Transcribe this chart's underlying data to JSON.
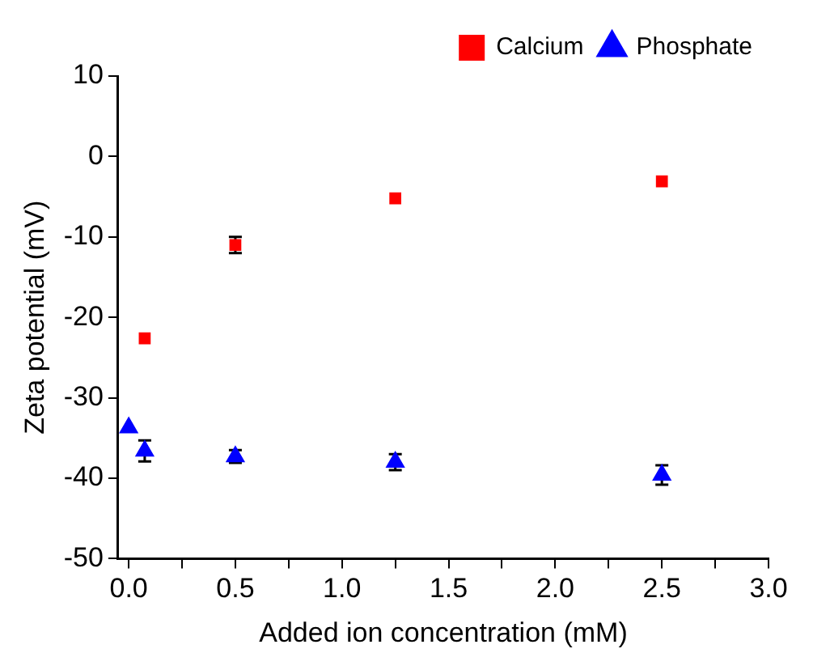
{
  "chart_data": {
    "type": "scatter",
    "xlabel": "Added ion concentration (mM)",
    "ylabel": "Zeta potential (mV)",
    "xlim": [
      -0.05,
      3.0
    ],
    "ylim": [
      -50,
      10
    ],
    "xticks": [
      {
        "value": 0,
        "label": "0.0"
      },
      {
        "value": 0.25,
        "label": null
      },
      {
        "value": 0.5,
        "label": "0.5"
      },
      {
        "value": 0.75,
        "label": null
      },
      {
        "value": 1,
        "label": "1.0"
      },
      {
        "value": 1.25,
        "label": null
      },
      {
        "value": 1.5,
        "label": "1.5"
      },
      {
        "value": 1.75,
        "label": null
      },
      {
        "value": 2,
        "label": "2.0"
      },
      {
        "value": 2.25,
        "label": null
      },
      {
        "value": 2.5,
        "label": "2.5"
      },
      {
        "value": 2.75,
        "label": null
      },
      {
        "value": 3,
        "label": "3.0"
      }
    ],
    "yticks": [
      -50,
      -40,
      -30,
      -20,
      -10,
      0,
      10
    ],
    "grid": false,
    "legend": "top right",
    "series": [
      {
        "name": "Calcium",
        "color": "#ff0000",
        "marker": "square",
        "x": [
          0.075,
          0.5,
          1.25,
          2.5
        ],
        "values": [
          -22.6,
          -11.0,
          -5.2,
          -3.1
        ],
        "errors": [
          null,
          1.0,
          null,
          null
        ]
      },
      {
        "name": "Phosphate",
        "color": "#0000ff",
        "marker": "triangle",
        "x": [
          0,
          0.075,
          0.5,
          1.25,
          2.5
        ],
        "values": [
          -33.7,
          -36.6,
          -37.3,
          -38.0,
          -39.6
        ],
        "errors": [
          null,
          1.3,
          0.8,
          1.0,
          1.2
        ]
      }
    ]
  }
}
